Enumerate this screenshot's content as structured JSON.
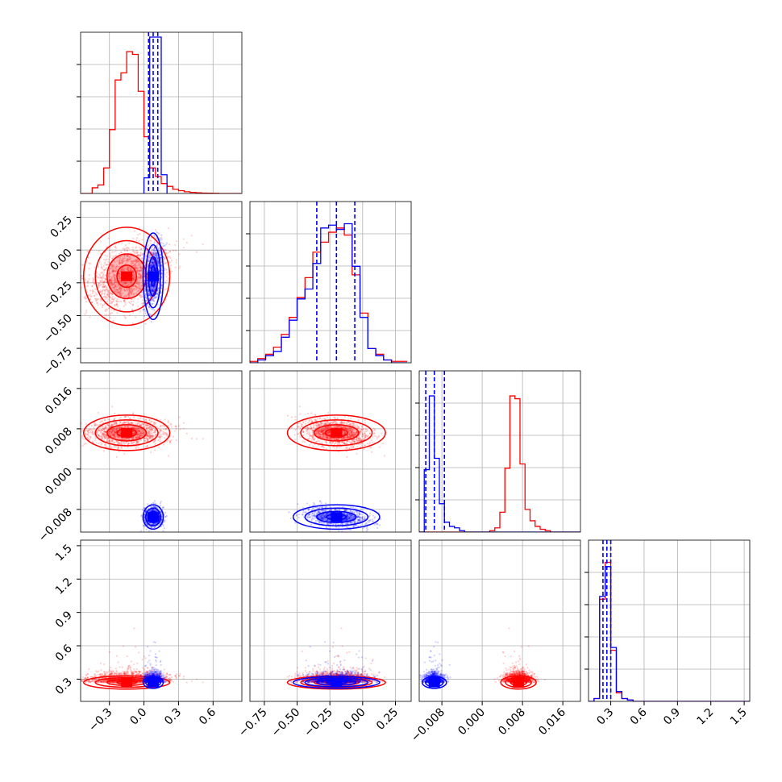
{
  "colors": {
    "series_a": "#ff0000",
    "series_b": "#0000ff",
    "grid": "#b0b0b0"
  },
  "chart_data": {
    "type": "corner",
    "grid": true,
    "series": [
      {
        "color": "#ff0000",
        "p1_median": -0.15,
        "p2_median": -0.2,
        "p3_median": 0.0072,
        "p4_median": 0.27
      },
      {
        "color": "#0000ff",
        "p1_median": 0.08,
        "p2_median": -0.2,
        "p3_median": -0.0095,
        "p4_median": 0.27
      }
    ],
    "quantile_lines": {
      "p1": [
        0.04,
        0.08,
        0.12
      ],
      "p2": [
        -0.35,
        -0.2,
        -0.06
      ],
      "p3": [
        -0.0112,
        -0.0095,
        -0.0075
      ],
      "p4": [
        0.23,
        0.265,
        0.3
      ]
    },
    "ranges": {
      "p1": [
        -0.55,
        0.85
      ],
      "p2": [
        -0.86,
        0.37
      ],
      "p3": [
        -0.0125,
        0.0195
      ],
      "p4": [
        0.1,
        1.55
      ]
    },
    "ticks": {
      "p1": [
        "−0.3",
        "0.0",
        "0.3",
        "0.6"
      ],
      "p1_values": [
        -0.3,
        0.0,
        0.3,
        0.6
      ],
      "p2": [
        "−0.75",
        "−0.50",
        "−0.25",
        "0.00",
        "0.25"
      ],
      "p2_values": [
        -0.75,
        -0.5,
        -0.25,
        0.0,
        0.25
      ],
      "p3": [
        "−0.008",
        "0.000",
        "0.008",
        "0.016"
      ],
      "p3_values": [
        -0.008,
        0.0,
        0.008,
        0.016
      ],
      "p4": [
        "0.3",
        "0.6",
        "0.9",
        "1.2",
        "1.5"
      ],
      "p4_values": [
        0.3,
        0.6,
        0.9,
        1.2,
        1.5
      ]
    },
    "histograms": {
      "p1": {
        "bins": [
          -0.55,
          -0.5,
          -0.45,
          -0.4,
          -0.35,
          -0.3,
          -0.25,
          -0.2,
          -0.15,
          -0.1,
          -0.05,
          0.0,
          0.05,
          0.1,
          0.15,
          0.2,
          0.25,
          0.3,
          0.35,
          0.4,
          0.45,
          0.5,
          0.55,
          0.6,
          0.65,
          0.7,
          0.75,
          0.8,
          0.85
        ],
        "red": [
          0,
          0,
          0.04,
          0.06,
          0.18,
          0.45,
          0.8,
          0.85,
          1.0,
          0.98,
          0.72,
          0.4,
          0.18,
          0.12,
          0.07,
          0.05,
          0.03,
          0.02,
          0.012,
          0.008,
          0.005,
          0.003,
          0.002,
          0.001,
          0,
          0,
          0,
          0
        ],
        "blue": [
          0,
          0,
          0,
          0,
          0,
          0,
          0,
          0,
          0,
          0,
          0,
          0,
          0,
          0,
          0,
          0,
          0,
          0,
          0,
          0,
          0,
          0,
          0,
          0,
          0,
          0,
          0,
          0
        ]
      },
      "p2": {
        "bins": [
          -0.86,
          -0.8,
          -0.74,
          -0.68,
          -0.62,
          -0.56,
          -0.5,
          -0.44,
          -0.38,
          -0.32,
          -0.26,
          -0.2,
          -0.14,
          -0.08,
          -0.02,
          0.04,
          0.1,
          0.16,
          0.22,
          0.28,
          0.34
        ],
        "red": [
          0.01,
          0.03,
          0.06,
          0.11,
          0.2,
          0.32,
          0.46,
          0.6,
          0.78,
          0.85,
          0.92,
          0.95,
          0.9,
          0.62,
          0.35,
          0.1,
          0.06,
          0.02,
          0.01,
          0.01
        ],
        "blue": [
          0.0,
          0.02,
          0.05,
          0.08,
          0.18,
          0.3,
          0.45,
          0.52,
          0.7,
          0.95,
          0.97,
          0.94,
          0.98,
          0.68,
          0.32,
          0.1,
          0.05,
          0.02,
          0.0,
          0.0
        ]
      },
      "p3": {
        "bins": [
          -0.0125,
          -0.0115,
          -0.0105,
          -0.0095,
          -0.0085,
          -0.0075,
          -0.0065,
          -0.0055,
          -0.0045,
          -0.0035,
          -0.0025,
          -0.0015,
          -0.0005,
          0.0005,
          0.0015,
          0.0025,
          0.0035,
          0.0045,
          0.0055,
          0.0065,
          0.0075,
          0.0085,
          0.0095,
          0.0105,
          0.0115,
          0.0125,
          0.0135,
          0.0145,
          0.0155,
          0.0165,
          0.0175,
          0.0185,
          0.0195
        ],
        "red": [
          0,
          0,
          0,
          0,
          0,
          0,
          0,
          0,
          0,
          0,
          0,
          0,
          0,
          0,
          0.01,
          0.03,
          0.14,
          0.45,
          0.96,
          0.94,
          0.48,
          0.16,
          0.08,
          0.04,
          0.02,
          0.01,
          0,
          0,
          0,
          0,
          0,
          0
        ],
        "blue": [
          0,
          0.44,
          0.96,
          0.52,
          0.2,
          0.07,
          0.04,
          0.03,
          0.01,
          0.0,
          0.0,
          0.0,
          0.0,
          0.0,
          0.0,
          0.0,
          0,
          0,
          0,
          0,
          0,
          0,
          0,
          0,
          0,
          0,
          0,
          0,
          0,
          0,
          0,
          0
        ]
      },
      "p4": {
        "bins": [
          0.1,
          0.15,
          0.2,
          0.25,
          0.3,
          0.35,
          0.4,
          0.45,
          0.5,
          0.55,
          0.6,
          0.65,
          0.7,
          0.75,
          0.8,
          0.85,
          0.9,
          0.95,
          1.0,
          1.05,
          1.1,
          1.15,
          1.2,
          1.25,
          1.3,
          1.35,
          1.4,
          1.45,
          1.5,
          1.55
        ],
        "red": [
          0.0,
          0.02,
          0.72,
          0.98,
          0.36,
          0.06,
          0.02,
          0.01,
          0.0,
          0.0,
          0.0,
          0.0,
          0.0,
          0.0,
          0.0,
          0.0,
          0.0,
          0.0,
          0.0,
          0.0,
          0.0,
          0.0,
          0.0,
          0.0,
          0.0,
          0.0,
          0.0,
          0.0,
          0.0
        ],
        "blue": [
          0.0,
          0.02,
          0.74,
          0.95,
          0.38,
          0.07,
          0.02,
          0.01,
          0.0,
          0.0,
          0.0,
          0.0,
          0.0,
          0.0,
          0.0,
          0.0,
          0.0,
          0.0,
          0.0,
          0.0,
          0.0,
          0.0,
          0.0,
          0.0,
          0.0,
          0.0,
          0.0,
          0.0,
          0.0
        ]
      }
    },
    "p1_blue_hist": [
      {
        "x0": -0.0,
        "x1": 0.05,
        "h": 0.1
      },
      {
        "x0": 0.05,
        "x1": 0.1,
        "h": 1.0
      },
      {
        "x0": 0.1,
        "x1": 0.15,
        "h": 1.0
      },
      {
        "x0": 0.15,
        "x1": 0.2,
        "h": 0.12
      }
    ]
  }
}
